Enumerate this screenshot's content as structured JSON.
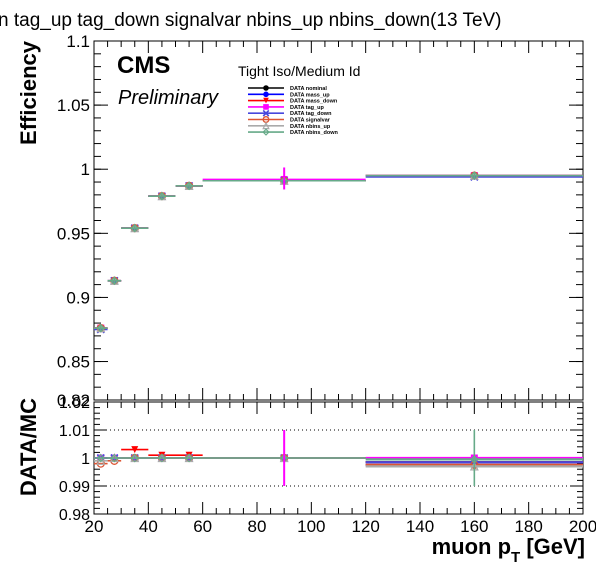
{
  "header": {
    "title": "n tag_up tag_down signalvar nbins_up nbins_down(13 TeV)",
    "cms_label": "CMS",
    "preliminary_label": "Preliminary",
    "legend_title": "Tight Iso/Medium Id"
  },
  "chart_data": [
    {
      "type": "scatter",
      "panel": "efficiency",
      "ylabel": "Efficiency",
      "xlabel": "",
      "xlim": [
        20,
        200
      ],
      "ylim": [
        0.82,
        1.1
      ],
      "yticks": [
        "0.82",
        "0.85",
        "0.9",
        "0.95",
        "1",
        "1.05",
        "1.1"
      ],
      "ytick_values": [
        0.82,
        0.85,
        0.9,
        0.95,
        1.0,
        1.05,
        1.1
      ],
      "grid": false,
      "legend_position": "top-center",
      "bins": [
        [
          20,
          25
        ],
        [
          25,
          30
        ],
        [
          30,
          40
        ],
        [
          40,
          50
        ],
        [
          50,
          60
        ],
        [
          60,
          120
        ],
        [
          120,
          200
        ]
      ],
      "series": [
        {
          "name": "DATA nominal",
          "color": "#000000",
          "marker": "circle",
          "values": [
            0.876,
            0.913,
            0.954,
            0.979,
            0.987,
            0.991,
            0.995
          ]
        },
        {
          "name": "DATA mass_up",
          "color": "#0000ff",
          "marker": "circle",
          "values": [
            0.876,
            0.913,
            0.954,
            0.979,
            0.987,
            0.991,
            0.995
          ]
        },
        {
          "name": "DATA mass_down",
          "color": "#ff0000",
          "marker": "triangle-down",
          "values": [
            0.876,
            0.913,
            0.954,
            0.979,
            0.987,
            0.991,
            0.995
          ]
        },
        {
          "name": "DATA tag_up",
          "color": "#ff00ff",
          "marker": "square",
          "values": [
            0.876,
            0.913,
            0.954,
            0.979,
            0.987,
            0.992,
            0.995
          ]
        },
        {
          "name": "DATA tag_down",
          "color": "#4848dd",
          "marker": "x",
          "values": [
            0.875,
            0.913,
            0.954,
            0.979,
            0.987,
            0.991,
            0.994
          ]
        },
        {
          "name": "DATA signalvar",
          "color": "#dd5533",
          "marker": "open-circle",
          "values": [
            0.876,
            0.913,
            0.954,
            0.979,
            0.987,
            0.991,
            0.995
          ]
        },
        {
          "name": "DATA nbins_up",
          "color": "#aaaaaa",
          "marker": "open-triangle",
          "values": [
            0.876,
            0.913,
            0.954,
            0.979,
            0.987,
            0.991,
            0.995
          ]
        },
        {
          "name": "DATA nbins_down",
          "color": "#66aa88",
          "marker": "open-diamond",
          "values": [
            0.876,
            0.913,
            0.954,
            0.979,
            0.987,
            0.991,
            0.995
          ]
        }
      ]
    },
    {
      "type": "scatter",
      "panel": "ratio",
      "ylabel": "DATA/MC",
      "xlabel": "muon p_T [GeV]",
      "xlim": [
        20,
        200
      ],
      "ylim": [
        0.98,
        1.02
      ],
      "yticks": [
        "0.98",
        "0.99",
        "1",
        "1.01",
        "1.02"
      ],
      "ytick_values": [
        0.98,
        0.99,
        1.0,
        1.01,
        1.02
      ],
      "xticks": [
        "20",
        "40",
        "60",
        "80",
        "100",
        "120",
        "140",
        "160",
        "180",
        "200"
      ],
      "xtick_values": [
        20,
        40,
        60,
        80,
        100,
        120,
        140,
        160,
        180,
        200
      ],
      "grid": "horizontal-dotted",
      "bins": [
        [
          20,
          25
        ],
        [
          25,
          30
        ],
        [
          30,
          40
        ],
        [
          40,
          50
        ],
        [
          50,
          60
        ],
        [
          60,
          120
        ],
        [
          120,
          200
        ]
      ],
      "series": [
        {
          "name": "DATA nominal",
          "color": "#000000",
          "values": [
            1.0,
            1.0,
            1.0,
            1.0,
            1.0,
            1.0,
            0.9985
          ]
        },
        {
          "name": "DATA mass_up",
          "color": "#0000ff",
          "values": [
            1.0,
            1.0,
            1.0,
            1.0,
            1.0,
            1.0,
            0.9975
          ]
        },
        {
          "name": "DATA mass_down",
          "color": "#ff0000",
          "values": [
            1.0,
            1.0,
            1.003,
            1.001,
            1.001,
            1.0,
            0.9985
          ]
        },
        {
          "name": "DATA tag_up",
          "color": "#ff00ff",
          "values": [
            1.0,
            1.0,
            1.0,
            1.0,
            1.0,
            1.0,
            1.0
          ]
        },
        {
          "name": "DATA tag_down",
          "color": "#4848dd",
          "values": [
            1.0,
            1.0,
            1.0,
            1.0,
            1.0,
            1.0,
            0.9985
          ]
        },
        {
          "name": "DATA signalvar",
          "color": "#dd5533",
          "values": [
            0.998,
            0.999,
            1.0,
            1.0,
            1.0,
            1.0,
            0.9975
          ]
        },
        {
          "name": "DATA nbins_up",
          "color": "#aaaaaa",
          "values": [
            0.999,
            1.0,
            1.0,
            1.0,
            1.0,
            1.0,
            0.997
          ]
        },
        {
          "name": "DATA nbins_down",
          "color": "#66aa88",
          "values": [
            1.0,
            1.0,
            1.0,
            1.0,
            1.0,
            1.0,
            0.9995
          ]
        }
      ]
    }
  ]
}
